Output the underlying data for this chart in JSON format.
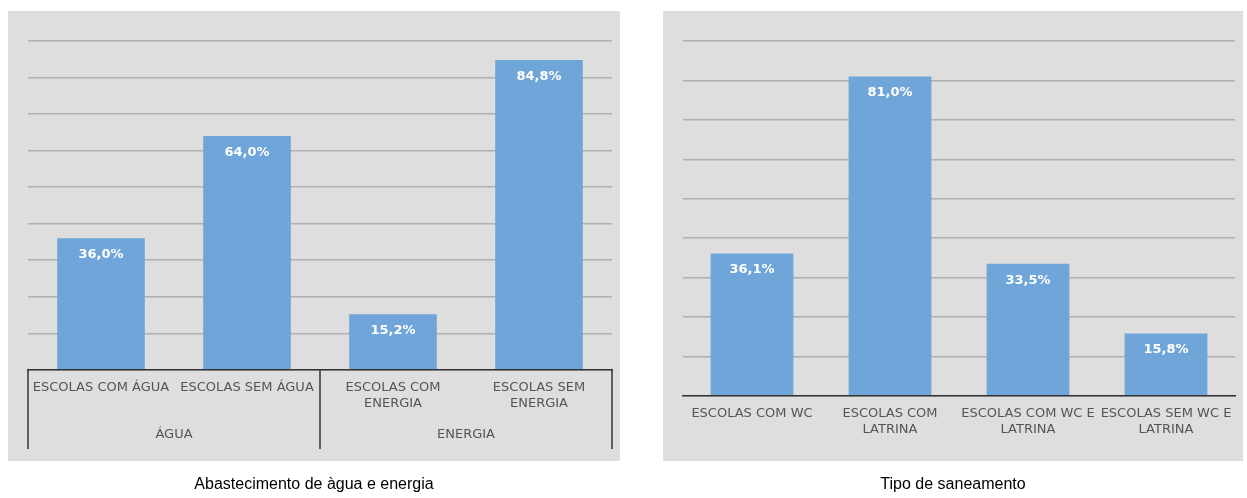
{
  "chart_data": [
    {
      "type": "bar",
      "title": "Abastecimento de àgua e energia",
      "categories": [
        "ESCOLAS COM ÁGUA",
        "ESCOLAS SEM ÁGUA",
        "ESCOLAS COM ENERGIA",
        "ESCOLAS SEM ENERGIA"
      ],
      "values": [
        36.0,
        64.0,
        15.2,
        84.8
      ],
      "color": "#6fa5d8",
      "value_labels": [
        "36,0%",
        "64,0%",
        "15,2%",
        "84,8%"
      ],
      "annotations": [
        "ÁGUA",
        "ENERGIA"
      ],
      "ylim": [
        0,
        90
      ],
      "yticks": [
        {
          "value": 0,
          "label": null
        },
        {
          "value": 10,
          "label": null
        },
        {
          "value": 20,
          "label": null
        },
        {
          "value": 30,
          "label": null
        },
        {
          "value": 40,
          "label": null
        },
        {
          "value": 50,
          "label": null
        },
        {
          "value": 60,
          "label": null
        },
        {
          "value": 70,
          "label": null
        },
        {
          "value": 80,
          "label": null
        },
        {
          "value": 90,
          "label": null
        }
      ],
      "grid": "y",
      "legend": false,
      "tick_labels": "x"
    },
    {
      "type": "bar",
      "title": "Tipo de saneamento",
      "categories": [
        "ESCOLAS COM WC",
        "ESCOLAS COM LATRINA",
        "ESCOLAS COM WC E LATRINA",
        "ESCOLAS SEM WC E LATRINA"
      ],
      "values": [
        36.1,
        81.0,
        33.5,
        15.8
      ],
      "color": "#6fa5d8",
      "value_labels": [
        "36,1%",
        "81,0%",
        "33,5%",
        "15,8%"
      ],
      "ylim": [
        0,
        90
      ],
      "yticks": [
        {
          "value": 0,
          "label": null
        },
        {
          "value": 10,
          "label": null
        },
        {
          "value": 20,
          "label": null
        },
        {
          "value": 30,
          "label": null
        },
        {
          "value": 40,
          "label": null
        },
        {
          "value": 50,
          "label": null
        },
        {
          "value": 60,
          "label": null
        },
        {
          "value": 70,
          "label": null
        },
        {
          "value": 80,
          "label": null
        },
        {
          "value": 90,
          "label": null
        }
      ],
      "grid": "y",
      "legend": false,
      "tick_labels": "x"
    }
  ]
}
